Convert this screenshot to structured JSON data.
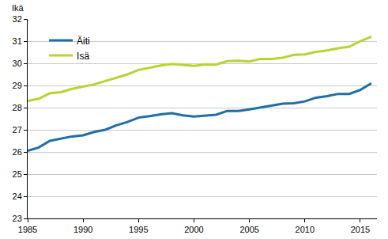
{
  "chart_data": {
    "type": "line",
    "ylabel": "Ikä",
    "x": [
      1985,
      1986,
      1987,
      1988,
      1989,
      1990,
      1991,
      1992,
      1993,
      1994,
      1995,
      1996,
      1997,
      1998,
      1999,
      2000,
      2001,
      2002,
      2003,
      2004,
      2005,
      2006,
      2007,
      2008,
      2009,
      2010,
      2011,
      2012,
      2013,
      2014,
      2015,
      2016
    ],
    "series": [
      {
        "name": "Äiti",
        "color": "#1f6ea8",
        "values": [
          26.05,
          26.2,
          26.5,
          26.6,
          26.7,
          26.75,
          26.9,
          27.0,
          27.2,
          27.35,
          27.55,
          27.62,
          27.7,
          27.75,
          27.65,
          27.6,
          27.65,
          27.68,
          27.85,
          27.85,
          27.92,
          28.0,
          28.1,
          28.18,
          28.2,
          28.28,
          28.45,
          28.52,
          28.62,
          28.62,
          28.8,
          29.1
        ]
      },
      {
        "name": "Isä",
        "color": "#b6d433",
        "values": [
          28.3,
          28.4,
          28.65,
          28.7,
          28.85,
          28.95,
          29.05,
          29.2,
          29.35,
          29.5,
          29.7,
          29.8,
          29.9,
          29.97,
          29.92,
          29.88,
          29.95,
          29.95,
          30.1,
          30.12,
          30.08,
          30.2,
          30.2,
          30.25,
          30.38,
          30.4,
          30.52,
          30.58,
          30.68,
          30.75,
          31.0,
          31.2
        ]
      }
    ],
    "xlim": [
      1985,
      2016.5
    ],
    "xticks": [
      1985,
      1990,
      1995,
      2000,
      2005,
      2010,
      2015
    ],
    "ylim": [
      23,
      32
    ],
    "yticks": [
      23,
      24,
      25,
      26,
      27,
      28,
      29,
      30,
      31,
      32
    ],
    "grid": true,
    "legend": "top-left"
  }
}
